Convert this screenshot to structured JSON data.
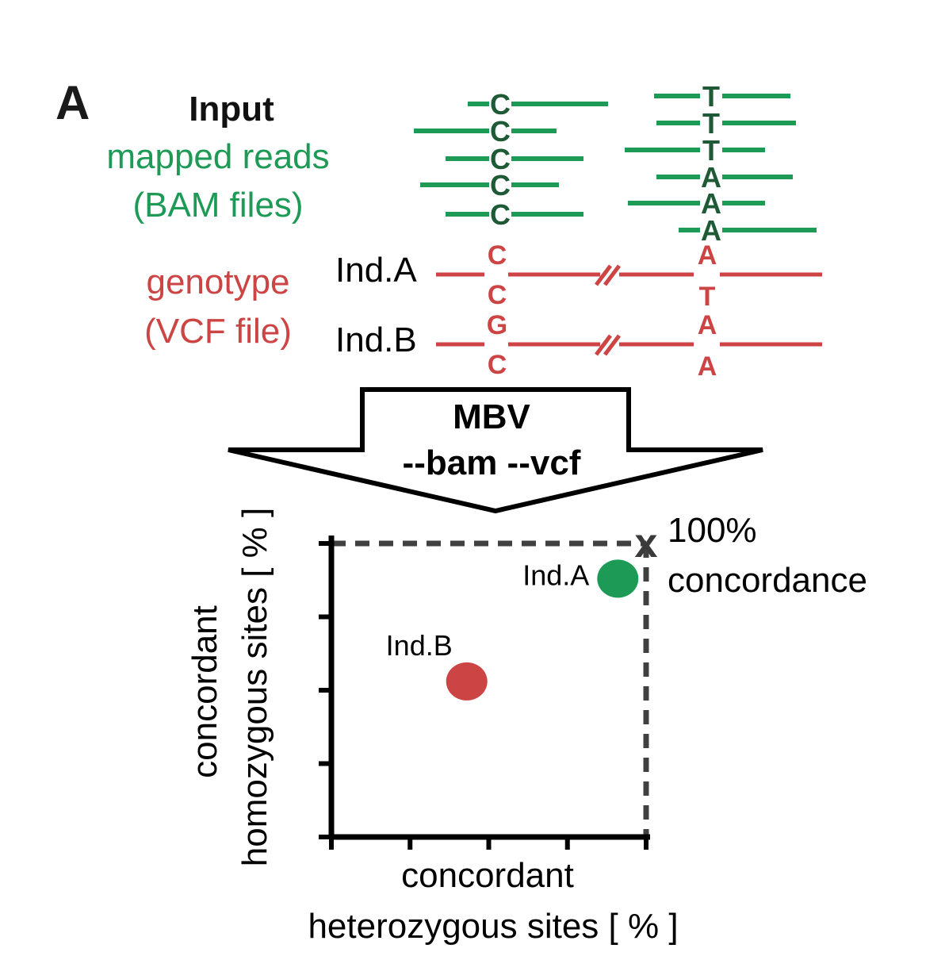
{
  "panel_label": "A",
  "input": {
    "title": "Input",
    "reads_line1": "mapped reads",
    "reads_line2": "(BAM files)",
    "geno_line1": "genotype",
    "geno_line2": "(VCF file)"
  },
  "reads": {
    "site1": [
      "C",
      "C",
      "C",
      "C",
      "C"
    ],
    "site2": [
      "T",
      "T",
      "T",
      "A",
      "A",
      "A"
    ]
  },
  "individuals": [
    {
      "label": "Ind.A",
      "site1": [
        "C",
        "C"
      ],
      "site2": [
        "A",
        "T"
      ]
    },
    {
      "label": "Ind.B",
      "site1": [
        "G",
        "C"
      ],
      "site2": [
        "A",
        "A"
      ]
    }
  ],
  "arrow": {
    "line1": "MBV",
    "line2": "--bam --vcf"
  },
  "plot": {
    "x_label_line1": "concordant",
    "x_label_line2": "heterozygous  sites [ % ]",
    "y_label_line1": "concordant",
    "y_label_line2": "homozygous sites [ % ]",
    "max_marker": "x",
    "max_label_line1": "100%",
    "max_label_line2": "concordance",
    "xlim": [
      0,
      100
    ],
    "ylim": [
      0,
      100
    ],
    "x_ticks": [
      0,
      25,
      50,
      75,
      100
    ],
    "y_ticks": [
      0,
      25,
      50,
      75,
      100
    ],
    "points": [
      {
        "label": "Ind.A",
        "x": 91,
        "y": 88,
        "color": "#1e9a57"
      },
      {
        "label": "Ind.B",
        "x": 43,
        "y": 53,
        "color": "#cc4444"
      }
    ]
  },
  "colors": {
    "reads": "#1e9a57",
    "reads_text": "#1f5a36",
    "genotype": "#cc4444",
    "dark": "#000000",
    "dashed": "#404040"
  }
}
